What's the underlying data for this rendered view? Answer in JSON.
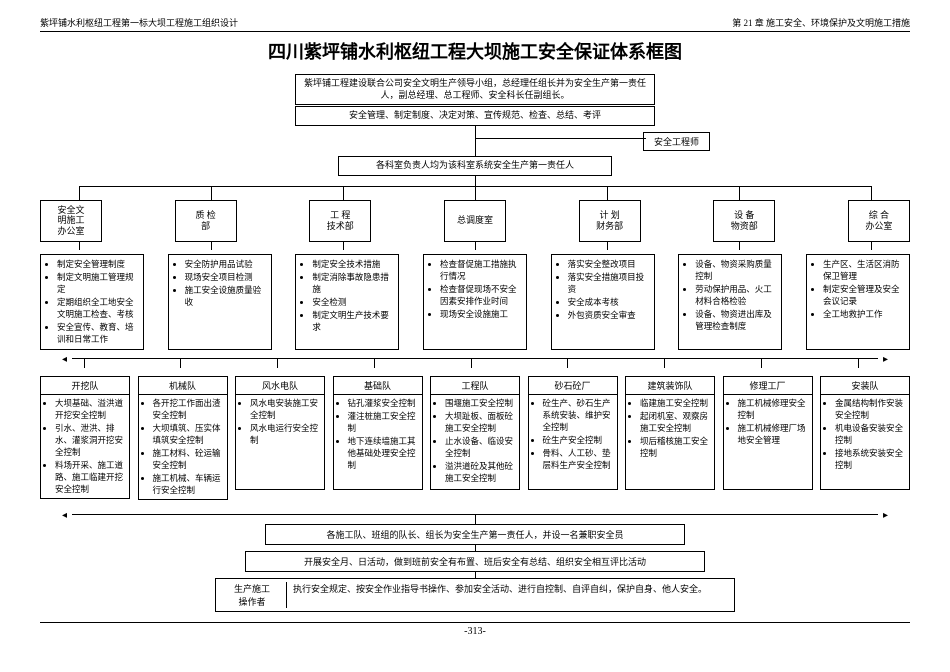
{
  "header": {
    "left": "紫坪铺水利枢纽工程第一标大坝工程施工组织设计",
    "right": "第 21 章  施工安全、环境保护及文明施工措施"
  },
  "title": "四川紫坪铺水利枢纽工程大坝施工安全保证体系框图",
  "topbox1": "紫坪铺工程建设联合公司安全文明生产领导小组，总经理任组长并为安全生产第一责任人，副总经理、总工程师、安全科长任副组长。",
  "topbox2": "安全管理、制定制度、决定对策、宣传规范、检查、总结、考评",
  "engineer": "安全工程师",
  "topbox3": "各科室负责人均为该科室系统安全生产第一责任人",
  "departments": [
    {
      "name": "安全文\n明施工\n办公室",
      "details": [
        "制定安全管理制度",
        "制定文明施工管理规定",
        "定期组织全工地安全文明施工检查、考核",
        "安全宣传、教育、培训和日常工作"
      ]
    },
    {
      "name": "质 检\n部",
      "details": [
        "安全防护用品试验",
        "现场安全项目检测",
        "施工安全设施质量验收"
      ]
    },
    {
      "name": "工 程\n技术部",
      "details": [
        "制定安全技术措施",
        "制定消除事故隐患措施",
        "安全检测",
        "制定文明生产技术要求"
      ]
    },
    {
      "name": "总调度室",
      "details": [
        "检查督促施工措施执行情况",
        "检查督促现场不安全因素安排作业时间",
        "现场安全设施施工"
      ]
    },
    {
      "name": "计 划\n财务部",
      "details": [
        "落实安全整改项目",
        "落实安全措施项目投资",
        "安全成本考核",
        "外包资质安全审查"
      ]
    },
    {
      "name": "设 备\n物资部",
      "details": [
        "设备、物资采购质量控制",
        "劳动保护用品、火工材料合格检验",
        "设备、物资进出库及管理检查制度"
      ]
    },
    {
      "name": "综 合\n办公室",
      "details": [
        "生产区、生活区消防保卫管理",
        "制定安全管理及安全会议记录",
        "全工地救护工作"
      ]
    }
  ],
  "teams": [
    {
      "name": "开挖队",
      "details": [
        "大坝基础、溢洪道开挖安全控制",
        "引水、泄洪、排水、灌浆洞开挖安全控制",
        "料场开采、施工道路、施工临建开挖安全控制"
      ]
    },
    {
      "name": "机械队",
      "details": [
        "各开挖工作面出渣安全控制",
        "大坝填筑、压实体填筑安全控制",
        "施工材料、砼运输安全控制",
        "施工机械、车辆运行安全控制"
      ]
    },
    {
      "name": "风水电队",
      "details": [
        "风水电安装施工安全控制",
        "风水电运行安全控制"
      ]
    },
    {
      "name": "基础队",
      "details": [
        "钻孔灌浆安全控制",
        "灌注桩施工安全控制",
        "地下连续墙施工其他基础处理安全控制"
      ]
    },
    {
      "name": "工程队",
      "details": [
        "围堰施工安全控制",
        "大坝趾板、面板砼施工安全控制",
        "止水设备、临设安全控制",
        "溢洪道砼及其他砼施工安全控制"
      ]
    },
    {
      "name": "砂石砼厂",
      "details": [
        "砼生产、砂石生产系统安装、维护安全控制",
        "砼生产安全控制",
        "骨料、人工砂、垫层料生产安全控制"
      ]
    },
    {
      "name": "建筑装饰队",
      "details": [
        "临建施工安全控制",
        "起闭机室、观察房施工安全控制",
        "坝后稽核施工安全控制"
      ]
    },
    {
      "name": "修理工厂",
      "details": [
        "施工机械修理安全控制",
        "施工机械修理厂场地安全管理"
      ]
    },
    {
      "name": "安装队",
      "details": [
        "金属结构制作安装安全控制",
        "机电设备安装安全控制",
        "接地系统安装安全控制"
      ]
    }
  ],
  "bottom1": "各施工队、班组的队长、组长为安全生产第一责任人，并设一名兼职安全员",
  "bottom2": "开展安全月、日活动，做到班前安全有布置、班后安全有总结、组织安全相互评比活动",
  "bottom3_label": "生产施工\n操作者",
  "bottom3_text": "执行安全规定、按安全作业指导书操作、参加安全活动、进行自控制、自评自纠，保护自身、他人安全。",
  "footer_page": "-313-"
}
